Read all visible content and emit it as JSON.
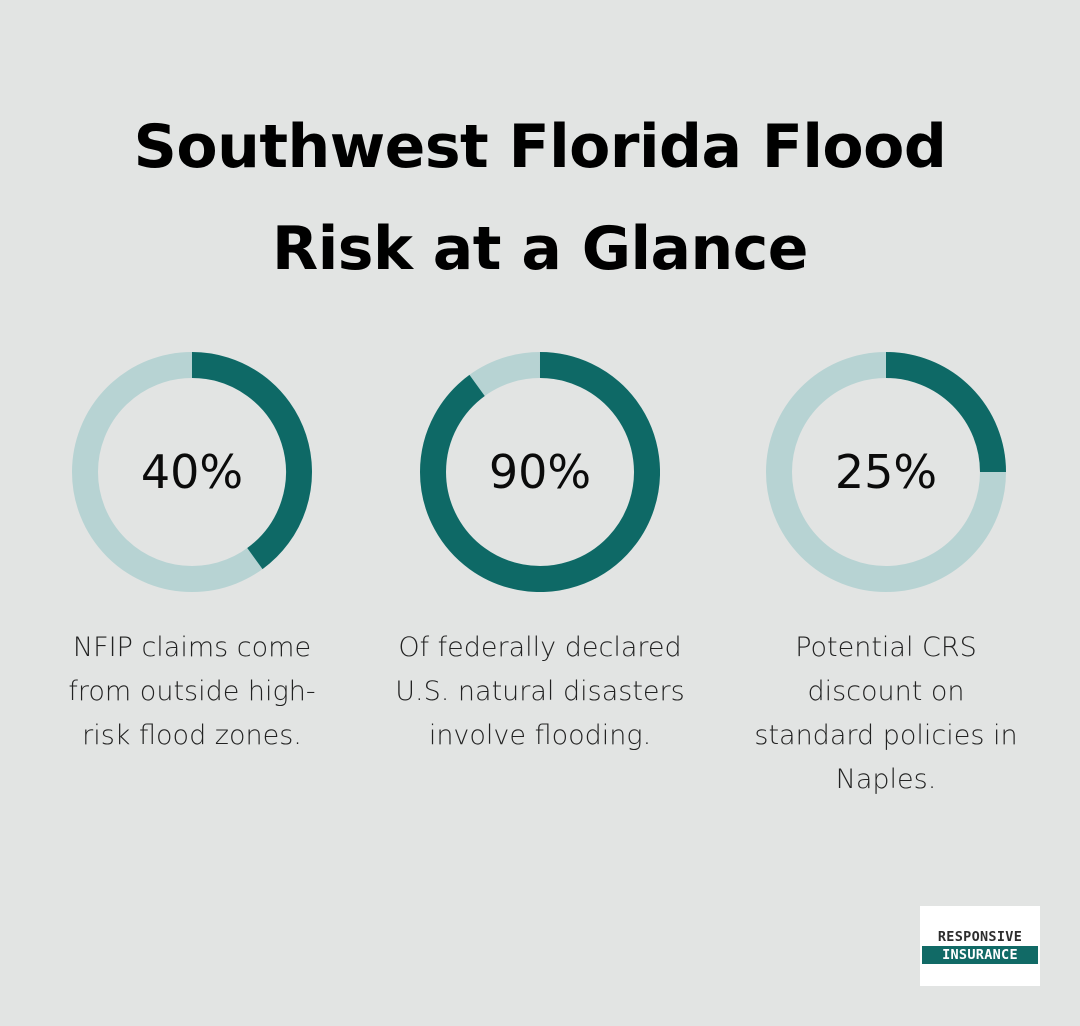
{
  "title": {
    "line1": "Southwest Florida Flood",
    "line2": "Risk at a Glance"
  },
  "colors": {
    "background": "#e2e4e3",
    "ring_filled": "#0e6966",
    "ring_track": "#b7d3d3",
    "logo_accent": "#116a66"
  },
  "chart_data": {
    "type": "donut",
    "charts": [
      {
        "value": 40,
        "label": "40%",
        "caption": [
          "NFIP claims come",
          "from outside high-",
          "risk flood zones."
        ]
      },
      {
        "value": 90,
        "label": "90%",
        "caption": [
          "Of federally declared",
          "U.S. natural disasters",
          "involve flooding."
        ]
      },
      {
        "value": 25,
        "label": "25%",
        "caption": [
          "Potential CRS",
          "discount on",
          "standard policies in",
          "Naples."
        ]
      }
    ]
  },
  "logo": {
    "line1": "RESPONSIVE",
    "line2": "INSURANCE"
  }
}
